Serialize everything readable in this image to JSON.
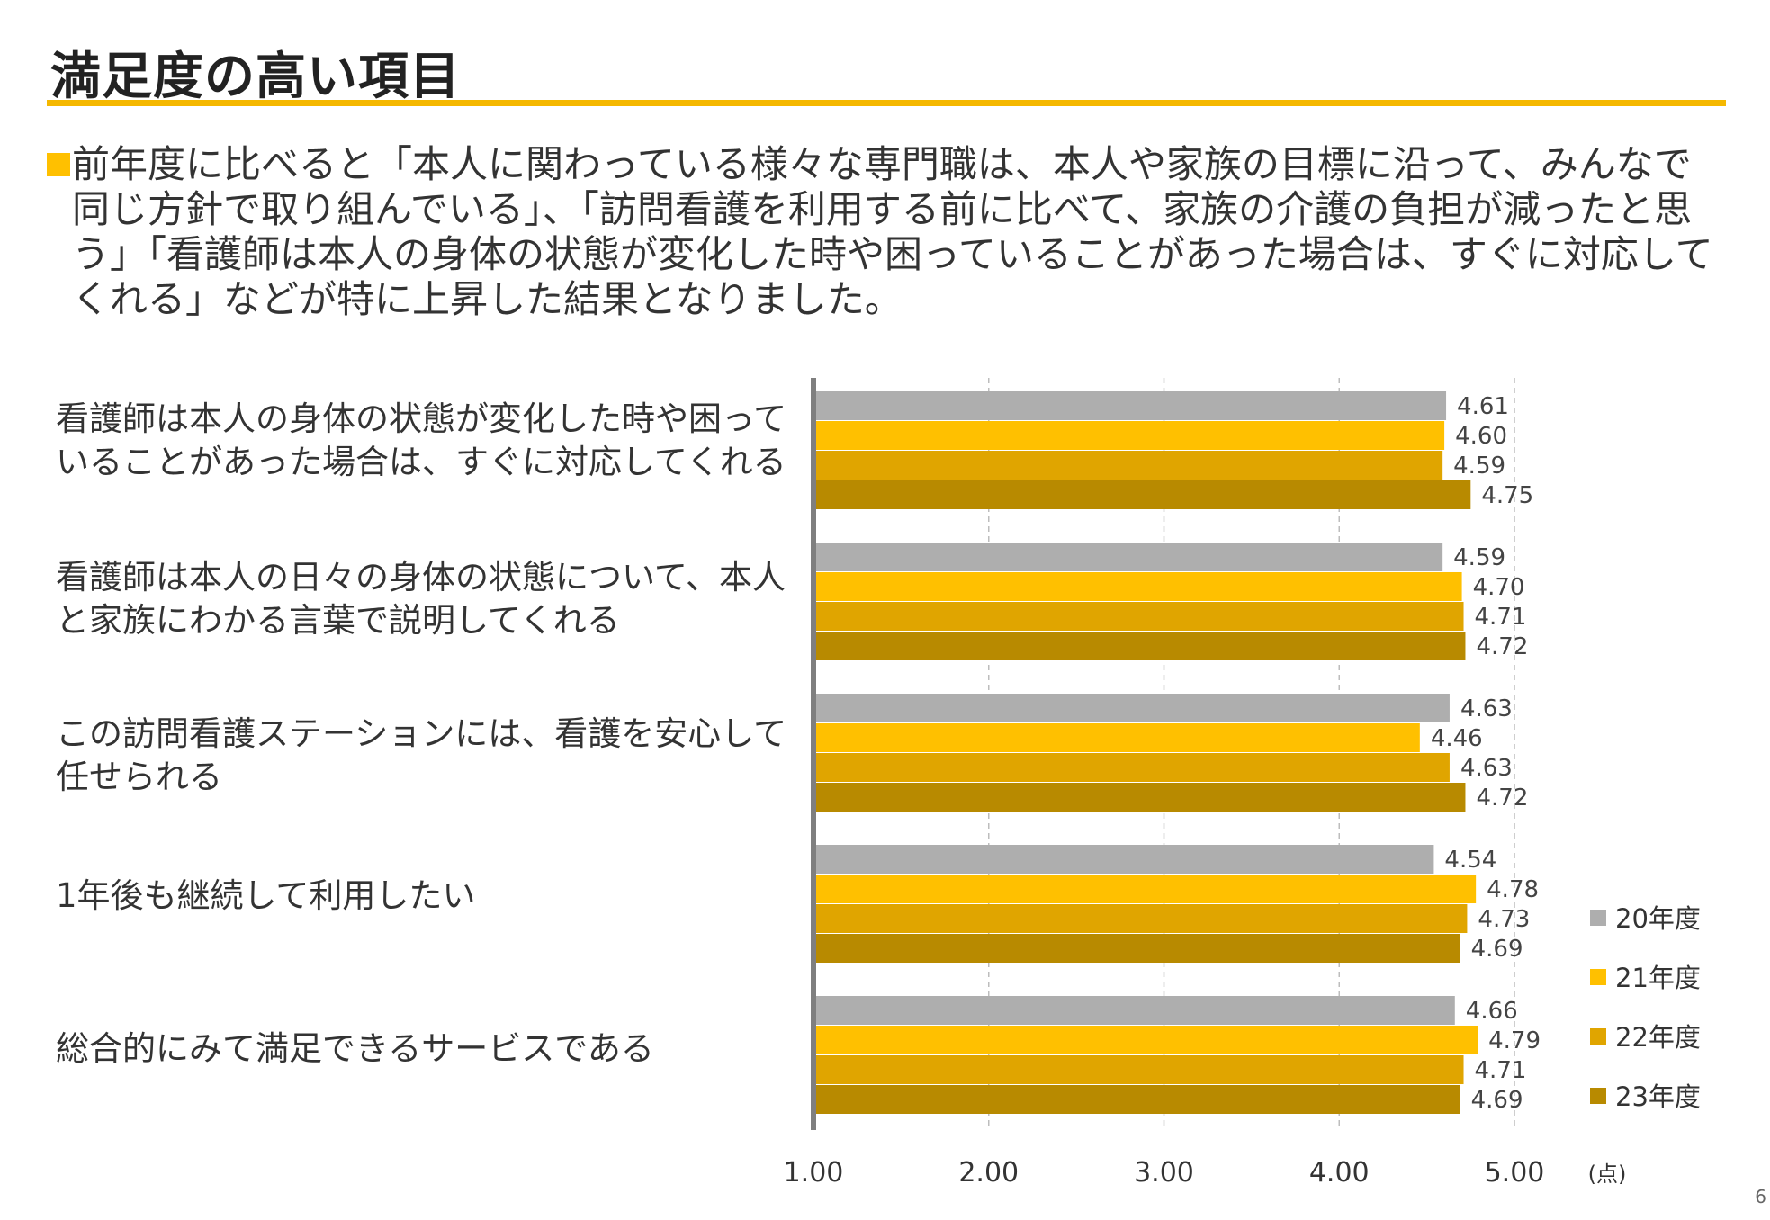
{
  "title": "満足度の高い項目",
  "intro": "前年度に比べると「本人に関わっている様々な専門職は、本人や家族の目標に沿って、みんなで同じ方針で取り組んでいる」、「訪問看護を利用する前に比べて、家族の介護の負担が減ったと思う」「看護師は本人の身体の状態が変化した時や困っていることがあった場合は、すぐに対応してくれる」などが特に上昇した結果となりました。",
  "page_number": "6",
  "colors": {
    "accent": "#FFC000",
    "rule": "#F5B800"
  },
  "chart_data": {
    "type": "bar",
    "orientation": "horizontal",
    "categories": [
      "看護師は本人の身体の状態が変化した時や困っていることがあった場合は、すぐに対応してくれる",
      "看護師は本人の日々の身体の状態について、本人と家族にわかる言葉で説明してくれる",
      "この訪問看護ステーションには、看護を安心して任せられる",
      "1年後も継続して利用したい",
      "総合的にみて満足できるサービスである"
    ],
    "series": [
      {
        "name": "20年度",
        "color": "#AEAEAE",
        "values": [
          4.61,
          4.59,
          4.63,
          4.54,
          4.66
        ],
        "labels": [
          "4.61",
          "4.59",
          "4.63",
          "4.54",
          "4.66"
        ]
      },
      {
        "name": "21年度",
        "color": "#FFC000",
        "values": [
          4.6,
          4.7,
          4.46,
          4.78,
          4.79
        ],
        "labels": [
          "4.60",
          "4.70",
          "4.46",
          "4.78",
          "4.79"
        ]
      },
      {
        "name": "22年度",
        "color": "#E0A500",
        "values": [
          4.59,
          4.71,
          4.63,
          4.73,
          4.71
        ],
        "labels": [
          "4.59",
          "4.71",
          "4.63",
          "4.73",
          "4.71"
        ]
      },
      {
        "name": "23年度",
        "color": "#B88A00",
        "values": [
          4.75,
          4.72,
          4.72,
          4.69,
          4.69
        ],
        "labels": [
          "4.75",
          "4.72",
          "4.72",
          "4.69",
          "4.69"
        ]
      }
    ],
    "xlim": [
      1.0,
      5.0
    ],
    "xticks": [
      "1.00",
      "2.00",
      "3.00",
      "4.00",
      "5.00"
    ],
    "xunit": "(点)",
    "grid": "vertical dashed",
    "legend": "right"
  }
}
